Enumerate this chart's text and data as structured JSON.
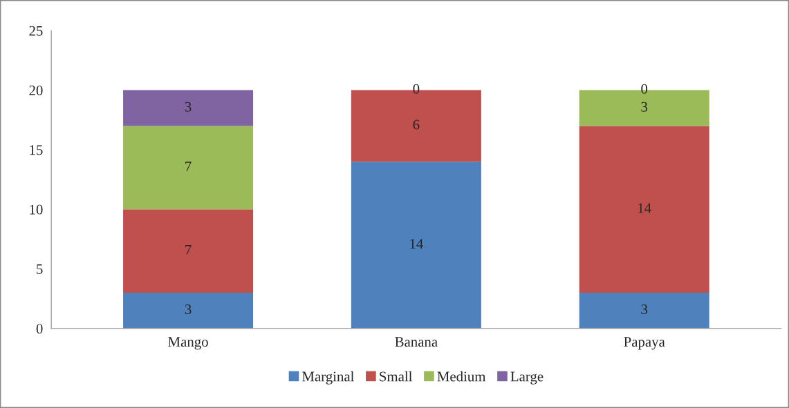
{
  "chart_data": {
    "type": "bar",
    "stacked": true,
    "categories": [
      "Mango",
      "Banana",
      "Papaya"
    ],
    "series": [
      {
        "name": "Marginal",
        "color": "#4f81bd",
        "values": [
          3,
          14,
          3
        ],
        "value_labels": [
          "3",
          "14",
          "3"
        ]
      },
      {
        "name": "Small",
        "color": "#c0504d",
        "values": [
          7,
          6,
          14
        ],
        "value_labels": [
          "7",
          "6",
          "14"
        ]
      },
      {
        "name": "Medium",
        "color": "#9bbb59",
        "values": [
          7,
          0,
          3
        ],
        "value_labels": [
          "7",
          "0",
          "3"
        ]
      },
      {
        "name": "Large",
        "color": "#8064a2",
        "values": [
          3,
          0,
          0
        ],
        "value_labels": [
          "3",
          null,
          "0"
        ]
      }
    ],
    "ylim": [
      0,
      25
    ],
    "yticks": [
      0,
      5,
      10,
      15,
      20,
      25
    ],
    "legend": "bottom",
    "grid": false
  }
}
